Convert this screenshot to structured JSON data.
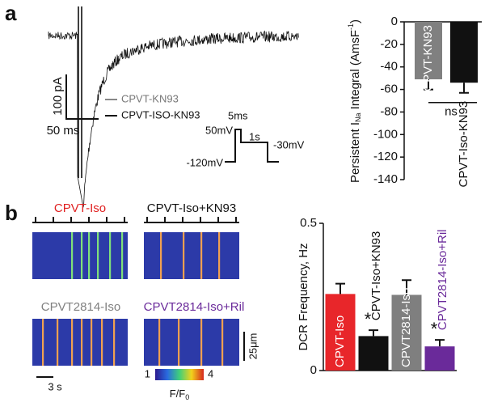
{
  "figure": {
    "panel_a": "a",
    "panel_b": "b",
    "scale_current": "100 pA",
    "scale_time_a": "50 ms",
    "legend": [
      "CPVT-KN93",
      "CPVT-ISO-KN93"
    ],
    "protocol": {
      "duration_short": "5ms",
      "step_high": "50mV",
      "duration_long": "1s",
      "step_mid": "-30mV",
      "holding": "-120mV"
    },
    "images": [
      "CPVT-Iso",
      "CPVT-Iso+KN93",
      "CPVT2814-Iso",
      "CPVT2814-Iso+Ril"
    ],
    "image_colors": [
      "#e02020",
      "#111111",
      "#808080",
      "#6a2a9a"
    ],
    "scale_space": "25μm",
    "scale_time_b": "3 s",
    "colorbar": {
      "min": 1,
      "max": 4,
      "label": "F/F",
      "label_sub": "0"
    }
  },
  "chart_data": [
    {
      "type": "bar",
      "ylabel": {
        "main": "Persistent I",
        "sub": "Na",
        "rest": " Integral (AmsF",
        "sup": "-1",
        "end": ")"
      },
      "categories": [
        "CPVT-KN93",
        "CPVT-Iso-KN93"
      ],
      "values": [
        -51,
        -54
      ],
      "errors": [
        9,
        9
      ],
      "colors": [
        "#808080",
        "#111111"
      ],
      "label_colors": [
        "#ffffff",
        "#111111"
      ],
      "annotation": "ns",
      "ylim": [
        -140,
        0
      ],
      "yticks": [
        0,
        -20,
        -40,
        -60,
        -80,
        -100,
        -120,
        -140
      ]
    },
    {
      "type": "bar",
      "ylabel": {
        "main": "DCR Frequency, Hz"
      },
      "categories": [
        "CPVT-Iso",
        "CPVT-Iso+KN93",
        "CPVT2814-Iso",
        "CPVT2814-Iso+Ril"
      ],
      "values": [
        0.26,
        0.117,
        0.257,
        0.082
      ],
      "errors": [
        0.035,
        0.02,
        0.05,
        0.022
      ],
      "colors": [
        "#e8262a",
        "#111111",
        "#7f7f7f",
        "#6a2a9a"
      ],
      "label_colors": [
        "#ffffff",
        "#111111",
        "#ffffff",
        "#6a2a9a"
      ],
      "annotations": [
        null,
        "*",
        null,
        "*"
      ],
      "ylim": [
        0,
        0.5
      ],
      "yticks": [
        0,
        0.5
      ]
    }
  ]
}
